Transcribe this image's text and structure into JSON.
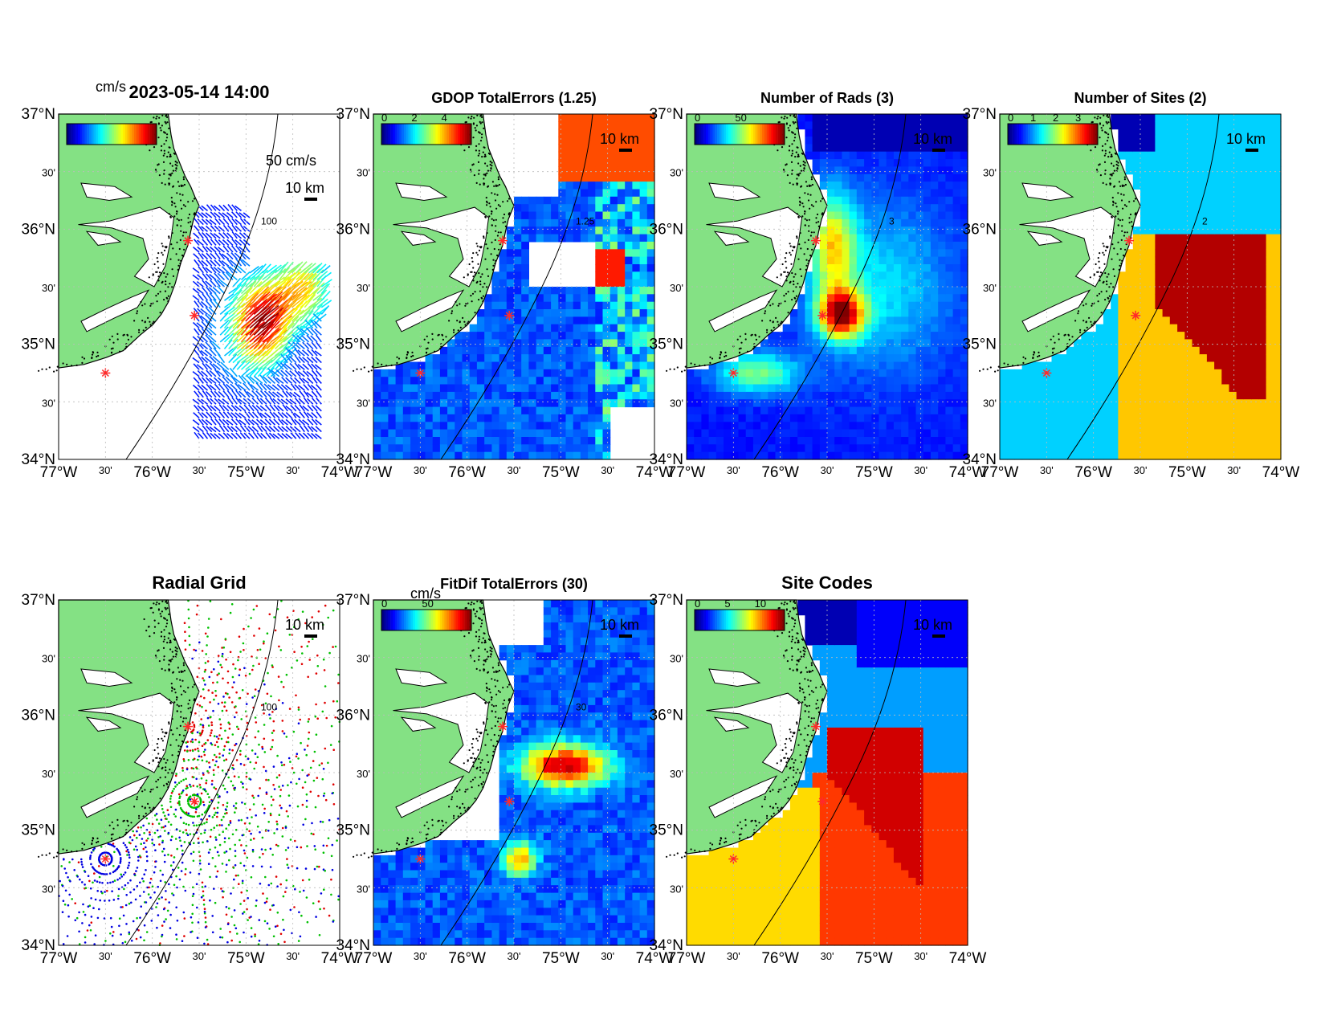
{
  "panels": [
    {
      "id": "vectors",
      "title": "2023-05-14 14:00",
      "colorbar_unit": "cm/s",
      "colorbar_ticks": [],
      "ref_vector_label": "50 cm/s",
      "scale_label": "10 km",
      "contour_labels": [
        "100"
      ],
      "field": "vectors"
    },
    {
      "id": "gdop",
      "title": "GDOP TotalErrors (1.25)",
      "colorbar_unit": "",
      "colorbar_ticks": [
        "0",
        "2",
        "4"
      ],
      "scale_label": "10 km",
      "contour_labels": [
        "1.25"
      ],
      "field": "gdop"
    },
    {
      "id": "nrads",
      "title": "Number of Rads (3)",
      "colorbar_unit": "",
      "colorbar_ticks": [
        "0",
        "50"
      ],
      "scale_label": "10 km",
      "contour_labels": [
        "3"
      ],
      "field": "nrads"
    },
    {
      "id": "nsites",
      "title": "Number of Sites (2)",
      "colorbar_unit": "",
      "colorbar_ticks": [
        "0",
        "1",
        "2",
        "3"
      ],
      "scale_label": "10 km",
      "contour_labels": [
        "2"
      ],
      "field": "nsites"
    },
    {
      "id": "radial_grid",
      "title": "Radial Grid",
      "colorbar_unit": "",
      "colorbar_ticks": [],
      "scale_label": "10 km",
      "contour_labels": [
        "100"
      ],
      "field": "radial"
    },
    {
      "id": "fitdif",
      "title": "FitDif TotalErrors (30)",
      "colorbar_unit": "cm/s",
      "colorbar_ticks": [
        "0",
        "50"
      ],
      "scale_label": "10 km",
      "contour_labels": [
        "30"
      ],
      "field": "fitdif"
    },
    {
      "id": "site_codes",
      "title": "Site Codes",
      "colorbar_unit": "",
      "colorbar_ticks": [
        "0",
        "5",
        "10"
      ],
      "scale_label": "10 km",
      "contour_labels": [],
      "field": "sitecodes"
    }
  ],
  "axes": {
    "lat_labels": [
      "37°N",
      "30'",
      "36°N",
      "30'",
      "35°N",
      "30'",
      "34°N"
    ],
    "lon_labels": [
      "77°W",
      "30'",
      "76°W",
      "30'",
      "75°W",
      "30'",
      "74°W"
    ],
    "lat_range": [
      34,
      37
    ],
    "lon_range": [
      -77,
      -74
    ]
  },
  "radar_sites": [
    {
      "lon": -75.62,
      "lat": 35.9
    },
    {
      "lon": -75.55,
      "lat": 35.25
    },
    {
      "lon": -76.5,
      "lat": 34.75
    }
  ],
  "colors": {
    "land": "#84e184",
    "coast": "#000000",
    "site_marker": "#ff2a2a",
    "radial_sites": [
      "#e00000",
      "#00c000",
      "#0000e0"
    ]
  }
}
